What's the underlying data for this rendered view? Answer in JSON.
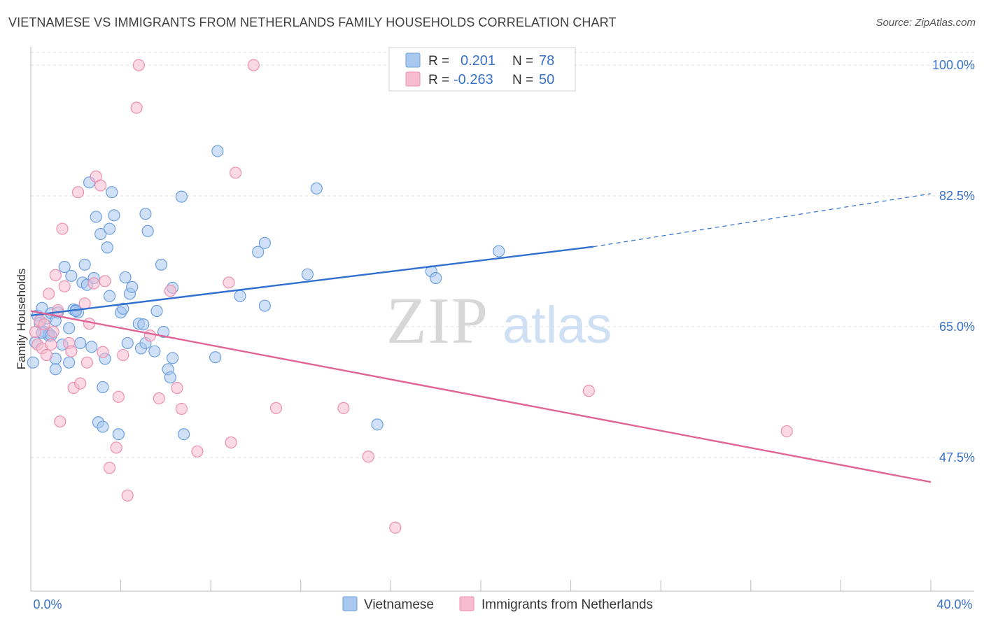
{
  "title": "VIETNAMESE VS IMMIGRANTS FROM NETHERLANDS FAMILY HOUSEHOLDS CORRELATION CHART",
  "source": "Source: ZipAtlas.com",
  "watermark": {
    "zip": "ZIP",
    "atlas": "atlas"
  },
  "colors": {
    "blue_fill": "#a9c8f0",
    "blue_stroke": "#6d9fde",
    "blue_line": "#2f6fcf",
    "pink_fill": "#f7bcd0",
    "pink_stroke": "#ec8fb0",
    "pink_line": "#e06596",
    "tick_text": "#3a72c8",
    "grid": "#dddddd"
  },
  "legend": {
    "rows": [
      {
        "r_label": "R =",
        "r_value": "0.201",
        "n_label": "N =",
        "n_value": "78"
      },
      {
        "r_label": "R =",
        "r_value": "-0.263",
        "n_label": "N =",
        "n_value": "50"
      }
    ]
  },
  "bottom_legend": [
    "Vietnamese",
    "Immigrants from Netherlands"
  ],
  "chart_data": {
    "type": "scatter",
    "title": "VIETNAMESE VS IMMIGRANTS FROM NETHERLANDS FAMILY HOUSEHOLDS CORRELATION CHART",
    "xlabel": "",
    "ylabel": "Family Households",
    "xlim": [
      0,
      40
    ],
    "ylim": [
      29.6,
      101.7
    ],
    "x_tick_labels": [
      "0.0%",
      "40.0%"
    ],
    "y_ticks": [
      47.5,
      65.0,
      82.5,
      100.0
    ],
    "y_tick_labels": [
      "47.5%",
      "65.0%",
      "82.5%",
      "100.0%"
    ],
    "grid": true,
    "legend_placement": "top-center",
    "series": [
      {
        "name": "Vietnamese",
        "color": "#6d9fde",
        "trend": {
          "x": [
            0.0,
            25.0
          ],
          "y": [
            66.5,
            75.7
          ],
          "dashed_to": {
            "x": 40.0,
            "y": 82.8
          }
        },
        "points": [
          [
            0.2,
            62.9
          ],
          [
            0.3,
            66.5
          ],
          [
            0.4,
            65.5
          ],
          [
            0.5,
            67.5
          ],
          [
            0.6,
            64.3
          ],
          [
            0.7,
            66.1
          ],
          [
            0.8,
            64.1
          ],
          [
            0.8,
            63.8
          ],
          [
            0.9,
            66.8
          ],
          [
            1.1,
            65.8
          ],
          [
            1.1,
            60.7
          ],
          [
            1.1,
            59.3
          ],
          [
            1.4,
            62.6
          ],
          [
            1.5,
            73.0
          ],
          [
            1.7,
            64.8
          ],
          [
            1.7,
            60.2
          ],
          [
            1.8,
            71.8
          ],
          [
            1.9,
            67.3
          ],
          [
            2.0,
            67.2
          ],
          [
            2.1,
            66.9
          ],
          [
            2.2,
            62.8
          ],
          [
            2.3,
            70.9
          ],
          [
            2.4,
            73.3
          ],
          [
            2.5,
            70.6
          ],
          [
            2.6,
            84.3
          ],
          [
            2.7,
            62.3
          ],
          [
            2.8,
            71.5
          ],
          [
            2.9,
            79.7
          ],
          [
            3.0,
            52.2
          ],
          [
            3.1,
            77.4
          ],
          [
            3.2,
            56.9
          ],
          [
            3.2,
            51.6
          ],
          [
            3.3,
            60.7
          ],
          [
            3.4,
            75.6
          ],
          [
            3.5,
            69.1
          ],
          [
            3.5,
            78.1
          ],
          [
            3.6,
            83.0
          ],
          [
            3.7,
            79.9
          ],
          [
            3.9,
            50.6
          ],
          [
            4.0,
            66.9
          ],
          [
            4.1,
            67.4
          ],
          [
            4.2,
            71.6
          ],
          [
            4.3,
            62.8
          ],
          [
            4.4,
            69.4
          ],
          [
            4.5,
            70.3
          ],
          [
            4.8,
            65.4
          ],
          [
            4.9,
            62.1
          ],
          [
            5.0,
            65.3
          ],
          [
            5.1,
            62.8
          ],
          [
            5.1,
            80.1
          ],
          [
            5.2,
            77.8
          ],
          [
            5.5,
            61.7
          ],
          [
            5.6,
            67.1
          ],
          [
            5.8,
            73.3
          ],
          [
            5.9,
            64.3
          ],
          [
            6.1,
            59.3
          ],
          [
            6.2,
            58.2
          ],
          [
            6.3,
            60.8
          ],
          [
            6.3,
            70.2
          ],
          [
            6.7,
            82.4
          ],
          [
            6.8,
            50.6
          ],
          [
            8.2,
            60.9
          ],
          [
            8.3,
            88.5
          ],
          [
            9.3,
            69.1
          ],
          [
            10.1,
            75.0
          ],
          [
            10.4,
            67.8
          ],
          [
            10.4,
            76.2
          ],
          [
            12.3,
            72.0
          ],
          [
            12.7,
            83.5
          ],
          [
            15.4,
            51.9
          ],
          [
            17.8,
            72.4
          ],
          [
            18.0,
            71.5
          ],
          [
            20.8,
            75.1
          ],
          [
            0.1,
            60.2
          ],
          [
            1.2,
            66.9
          ],
          [
            2.0,
            67.1
          ],
          [
            0.5,
            64.2
          ],
          [
            0.9,
            63.8
          ]
        ]
      },
      {
        "name": "Immigrants from Netherlands",
        "color": "#ec8fb0",
        "trend": {
          "x": [
            0.0,
            40.0
          ],
          "y": [
            67.1,
            44.2
          ]
        },
        "points": [
          [
            0.2,
            64.3
          ],
          [
            0.3,
            62.6
          ],
          [
            0.4,
            65.8
          ],
          [
            0.5,
            62.1
          ],
          [
            0.6,
            65.3
          ],
          [
            0.7,
            61.2
          ],
          [
            0.8,
            69.4
          ],
          [
            0.9,
            62.6
          ],
          [
            1.0,
            64.3
          ],
          [
            1.1,
            71.9
          ],
          [
            1.2,
            67.2
          ],
          [
            1.3,
            52.3
          ],
          [
            1.4,
            78.1
          ],
          [
            1.5,
            70.4
          ],
          [
            1.7,
            62.8
          ],
          [
            1.8,
            61.7
          ],
          [
            1.9,
            56.8
          ],
          [
            2.1,
            83.0
          ],
          [
            2.2,
            57.4
          ],
          [
            2.4,
            68.1
          ],
          [
            2.5,
            60.2
          ],
          [
            2.6,
            65.4
          ],
          [
            2.8,
            70.8
          ],
          [
            2.9,
            85.1
          ],
          [
            3.1,
            83.9
          ],
          [
            3.3,
            71.1
          ],
          [
            3.5,
            46.1
          ],
          [
            3.8,
            48.8
          ],
          [
            3.9,
            55.6
          ],
          [
            4.1,
            61.2
          ],
          [
            4.3,
            42.4
          ],
          [
            4.7,
            94.3
          ],
          [
            4.8,
            100.0
          ],
          [
            5.3,
            63.8
          ],
          [
            5.7,
            55.4
          ],
          [
            6.2,
            69.8
          ],
          [
            6.5,
            56.8
          ],
          [
            6.7,
            54.0
          ],
          [
            7.4,
            48.3
          ],
          [
            8.8,
            70.9
          ],
          [
            8.9,
            49.5
          ],
          [
            9.1,
            85.6
          ],
          [
            9.9,
            100.0
          ],
          [
            10.9,
            54.1
          ],
          [
            13.9,
            54.1
          ],
          [
            15.0,
            47.6
          ],
          [
            16.2,
            38.1
          ],
          [
            24.8,
            56.4
          ],
          [
            33.6,
            51.0
          ],
          [
            3.2,
            61.6
          ]
        ]
      }
    ]
  }
}
